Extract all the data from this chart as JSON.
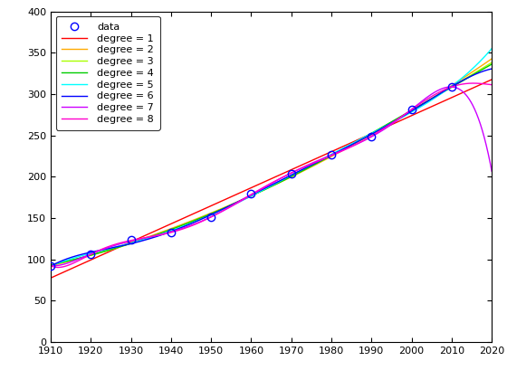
{
  "years_data": [
    1910,
    1920,
    1930,
    1940,
    1950,
    1960,
    1970,
    1980,
    1990,
    2000,
    2010
  ],
  "pop_data": [
    92.2,
    106.0,
    123.2,
    132.2,
    151.3,
    179.3,
    203.3,
    226.5,
    248.7,
    281.4,
    308.7
  ],
  "xlim": [
    1910,
    2020
  ],
  "ylim": [
    0,
    400
  ],
  "yticks": [
    0,
    50,
    100,
    150,
    200,
    250,
    300,
    350,
    400
  ],
  "xticks": [
    1910,
    1920,
    1930,
    1940,
    1950,
    1960,
    1970,
    1980,
    1990,
    2000,
    2010,
    2020
  ],
  "degree_colors": [
    "#ff0000",
    "#ffaa00",
    "#aaff00",
    "#00cc00",
    "#00ffff",
    "#0000ff",
    "#cc00ff",
    "#ff00cc"
  ],
  "data_color": "#0000ff",
  "background_color": "#ffffff",
  "figsize": [
    5.6,
    4.2
  ],
  "dpi": 100,
  "legend_fontsize": 8,
  "tick_fontsize": 8
}
